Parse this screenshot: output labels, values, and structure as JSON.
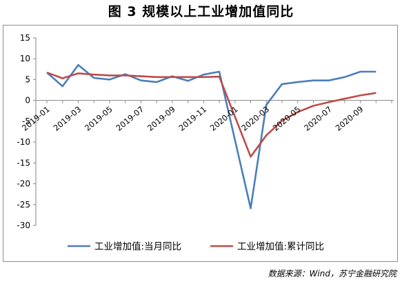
{
  "figure": {
    "title": "图 3  规模以上工业增加值同比",
    "source": "数据来源：Wind，苏宁金融研究院"
  },
  "chart_data": {
    "type": "line",
    "title": "图 3  规模以上工业增加值同比",
    "xlabel": "",
    "ylabel": "",
    "ylim": [
      -30,
      15
    ],
    "yticks": [
      15,
      10,
      5,
      0,
      -5,
      -10,
      -15,
      -20,
      -25,
      -30
    ],
    "x": [
      "2019-01",
      "2019-02",
      "2019-03",
      "2019-04",
      "2019-05",
      "2019-06",
      "2019-07",
      "2019-08",
      "2019-09",
      "2019-10",
      "2019-11",
      "2019-12",
      "2020-01",
      "2020-02",
      "2020-03",
      "2020-04",
      "2020-05",
      "2020-06",
      "2020-07",
      "2020-08",
      "2020-09",
      "2020-10",
      "2020-11"
    ],
    "xtick_labels": [
      "2019-01",
      "2019-03",
      "2019-05",
      "2019-07",
      "2019-09",
      "2019-11",
      "2020-01",
      "2020-03",
      "2020-05",
      "2020-07",
      "2020-09"
    ],
    "grid": false,
    "legend_position": "bottom",
    "series": [
      {
        "name": "工业增加值:当月同比",
        "color": "#4a7ebb",
        "values": [
          6.7,
          3.4,
          8.5,
          5.4,
          5.0,
          6.3,
          4.8,
          4.4,
          5.8,
          4.7,
          6.2,
          6.9,
          null,
          -25.9,
          -1.1,
          3.9,
          4.4,
          4.8,
          4.8,
          5.6,
          6.9,
          6.9,
          null
        ]
      },
      {
        "name": "工业增加值:累计同比",
        "color": "#be4b48",
        "values": [
          6.7,
          5.3,
          6.5,
          6.2,
          6.0,
          6.0,
          5.8,
          5.6,
          5.6,
          5.6,
          5.6,
          5.7,
          null,
          -13.5,
          -8.4,
          -4.9,
          -2.8,
          -1.3,
          -0.4,
          0.4,
          1.2,
          1.8,
          null
        ]
      }
    ]
  }
}
